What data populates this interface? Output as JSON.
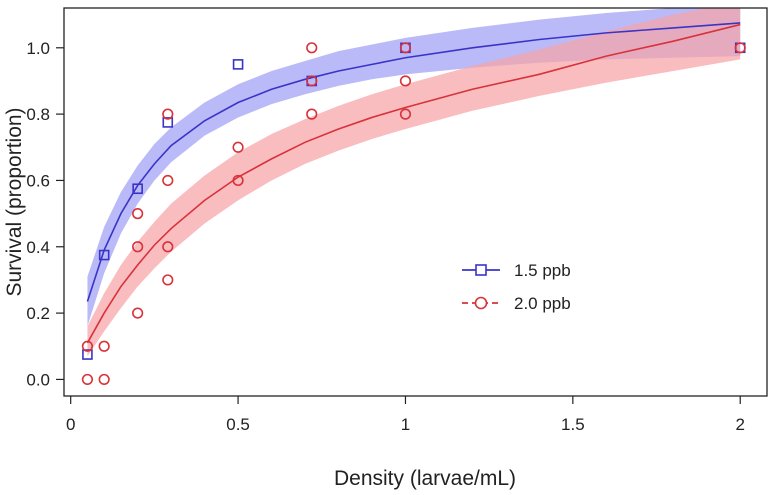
{
  "chart_data": {
    "type": "scatter",
    "title": "",
    "xlabel": "Density (larvae/mL)",
    "ylabel": "Survival (proportion)",
    "xlim": [
      -0.02,
      2.08
    ],
    "ylim": [
      -0.05,
      1.12
    ],
    "x_ticks": [
      0,
      0.5,
      1,
      1.5,
      2
    ],
    "x_tick_labels": [
      "0",
      "0.5",
      "1",
      "1.5",
      "2"
    ],
    "y_ticks": [
      0,
      0.2,
      0.4,
      0.6,
      0.8,
      1.0
    ],
    "y_tick_labels": [
      "0.0",
      "0.2",
      "0.4",
      "0.6",
      "0.8",
      "1.0"
    ],
    "legend_position": "center-right",
    "series": [
      {
        "name": "1.5 ppb",
        "marker": "square",
        "line_style": "solid",
        "color": "#3a34c6",
        "band_color": "#a3a3f5",
        "points": [
          {
            "x": 0.05,
            "y": 0.075
          },
          {
            "x": 0.1,
            "y": 0.375
          },
          {
            "x": 0.2,
            "y": 0.575
          },
          {
            "x": 0.29,
            "y": 0.775
          },
          {
            "x": 0.5,
            "y": 0.95
          },
          {
            "x": 0.72,
            "y": 0.9
          },
          {
            "x": 1.0,
            "y": 1.0
          },
          {
            "x": 2.0,
            "y": 1.0
          }
        ],
        "fit": {
          "x": [
            0.05,
            0.1,
            0.15,
            0.2,
            0.25,
            0.3,
            0.4,
            0.5,
            0.6,
            0.7,
            0.8,
            0.9,
            1.0,
            1.2,
            1.4,
            1.6,
            1.8,
            2.0
          ],
          "y": [
            0.235,
            0.39,
            0.5,
            0.585,
            0.65,
            0.705,
            0.78,
            0.835,
            0.875,
            0.905,
            0.93,
            0.95,
            0.97,
            1.0,
            1.025,
            1.045,
            1.06,
            1.075
          ],
          "lower": [
            0.16,
            0.32,
            0.44,
            0.53,
            0.6,
            0.655,
            0.735,
            0.79,
            0.83,
            0.86,
            0.885,
            0.905,
            0.92,
            0.94,
            0.955,
            0.965,
            0.97,
            0.975
          ],
          "upper": [
            0.31,
            0.46,
            0.565,
            0.645,
            0.71,
            0.76,
            0.835,
            0.89,
            0.93,
            0.96,
            0.99,
            1.01,
            1.03,
            1.06,
            1.085,
            1.105,
            1.12,
            1.13
          ]
        }
      },
      {
        "name": "2.0 ppb",
        "marker": "circle",
        "line_style": "dashed",
        "color": "#d8323a",
        "band_color": "#f7a3a8",
        "points": [
          {
            "x": 0.05,
            "y": 0.1
          },
          {
            "x": 0.05,
            "y": 0.0
          },
          {
            "x": 0.1,
            "y": 0.1
          },
          {
            "x": 0.1,
            "y": 0.0
          },
          {
            "x": 0.2,
            "y": 0.5
          },
          {
            "x": 0.2,
            "y": 0.4
          },
          {
            "x": 0.2,
            "y": 0.2
          },
          {
            "x": 0.29,
            "y": 0.8
          },
          {
            "x": 0.29,
            "y": 0.6
          },
          {
            "x": 0.29,
            "y": 0.4
          },
          {
            "x": 0.29,
            "y": 0.3
          },
          {
            "x": 0.5,
            "y": 0.7
          },
          {
            "x": 0.5,
            "y": 0.6
          },
          {
            "x": 0.72,
            "y": 1.0
          },
          {
            "x": 0.72,
            "y": 0.9
          },
          {
            "x": 0.72,
            "y": 0.8
          },
          {
            "x": 1.0,
            "y": 1.0
          },
          {
            "x": 1.0,
            "y": 0.9
          },
          {
            "x": 1.0,
            "y": 0.8
          },
          {
            "x": 2.0,
            "y": 1.0
          }
        ],
        "fit": {
          "x": [
            0.05,
            0.1,
            0.15,
            0.2,
            0.25,
            0.3,
            0.4,
            0.5,
            0.6,
            0.7,
            0.8,
            0.9,
            1.0,
            1.2,
            1.4,
            1.6,
            1.8,
            2.0
          ],
          "y": [
            0.11,
            0.2,
            0.28,
            0.345,
            0.405,
            0.455,
            0.54,
            0.61,
            0.665,
            0.715,
            0.755,
            0.79,
            0.82,
            0.875,
            0.92,
            0.975,
            1.02,
            1.07
          ],
          "lower": [
            0.07,
            0.145,
            0.215,
            0.28,
            0.335,
            0.385,
            0.47,
            0.54,
            0.6,
            0.65,
            0.69,
            0.725,
            0.755,
            0.81,
            0.855,
            0.895,
            0.93,
            0.965
          ],
          "upper": [
            0.16,
            0.26,
            0.345,
            0.415,
            0.475,
            0.53,
            0.615,
            0.685,
            0.74,
            0.785,
            0.825,
            0.86,
            0.89,
            0.945,
            0.995,
            1.05,
            1.1,
            1.14
          ]
        }
      }
    ]
  }
}
